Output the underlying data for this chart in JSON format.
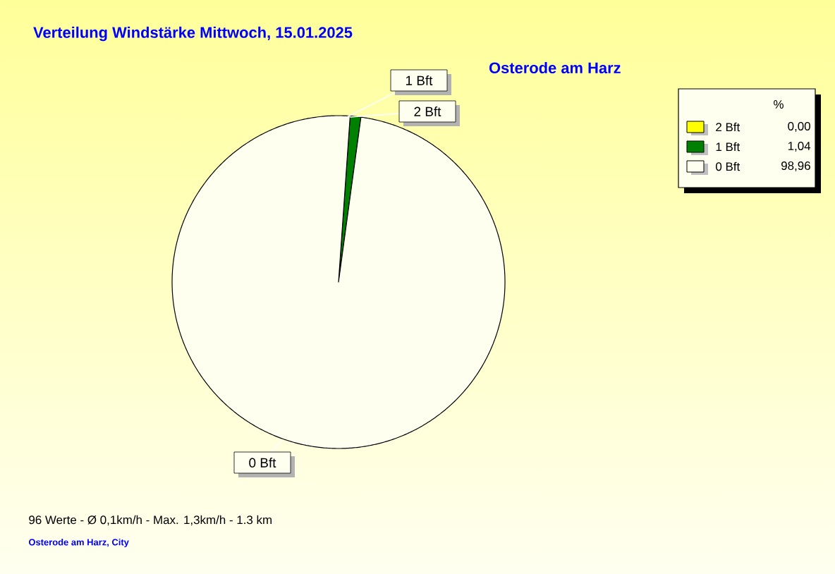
{
  "chart_data": {
    "type": "pie",
    "title": "Verteilung Windstärke  Mittwoch, 15.01.2025",
    "subtitle": "Osterode am Harz",
    "categories": [
      "2 Bft",
      "1 Bft",
      "0 Bft"
    ],
    "values": [
      0.0,
      1.04,
      98.96
    ],
    "colors": [
      "#ffff00",
      "#008000",
      "#fffff0"
    ],
    "value_labels": [
      "0,00",
      "1,04",
      "98,96"
    ],
    "legend": "top right",
    "legend_title": "%",
    "annotations": [
      "96 Werte  -  Ø 0,1km/h  -  Max. 1,3km/h  -  1.3 km",
      "Osterode am Harz, City"
    ]
  }
}
